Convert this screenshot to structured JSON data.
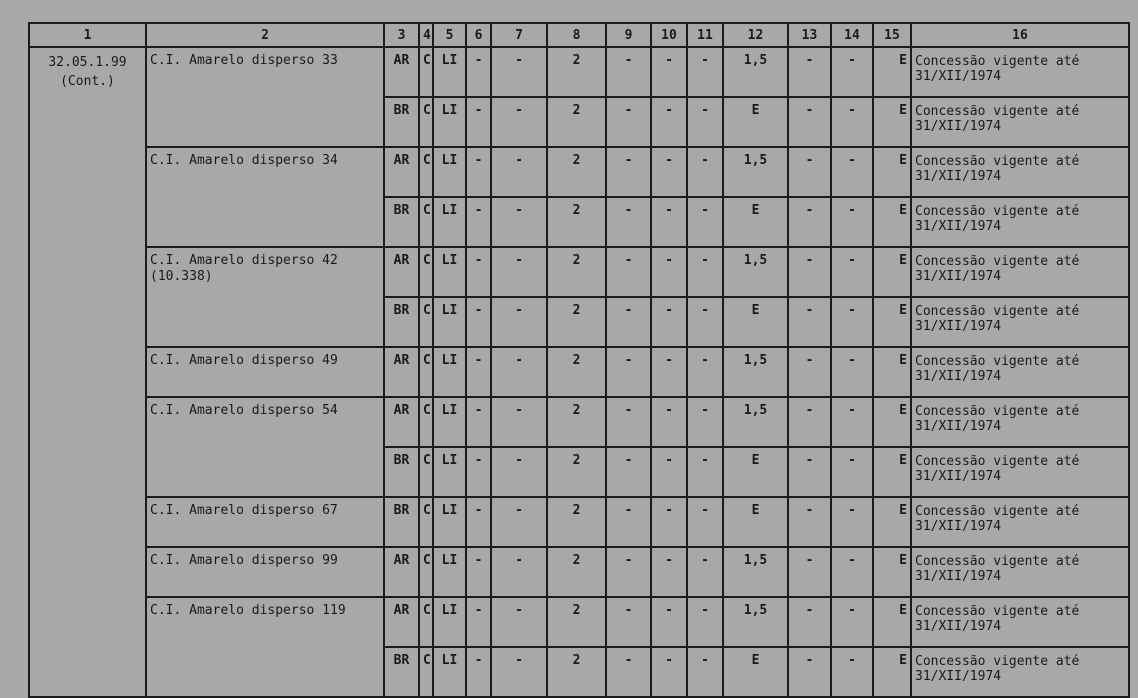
{
  "headers": [
    "1",
    "2",
    "3",
    "4",
    "5",
    "6",
    "7",
    "8",
    "9",
    "10",
    "11",
    "12",
    "13",
    "14",
    "15",
    "16"
  ],
  "code": {
    "line1": "32.05.1.99",
    "line2": "(Cont.)"
  },
  "groups": [
    {
      "name": "C.I. Amarelo disperso 33",
      "rows": [
        [
          "AR",
          "C",
          "LI",
          "-",
          "-",
          "2",
          "-",
          "-",
          "-",
          "1,5",
          "-",
          "-",
          "E",
          "Concessão vigente até 31/XII/1974"
        ],
        [
          "BR",
          "C",
          "LI",
          "-",
          "-",
          "2",
          "-",
          "-",
          "-",
          "E",
          "-",
          "-",
          "E",
          "Concessão vigente até 31/XII/1974"
        ]
      ]
    },
    {
      "name": "C.I. Amarelo disperso 34",
      "rows": [
        [
          "AR",
          "C",
          "LI",
          "-",
          "-",
          "2",
          "-",
          "-",
          "-",
          "1,5",
          "-",
          "-",
          "E",
          "Concessão vigente até 31/XII/1974"
        ],
        [
          "BR",
          "C",
          "LI",
          "-",
          "-",
          "2",
          "-",
          "-",
          "-",
          "E",
          "-",
          "-",
          "E",
          "Concessão vigente até 31/XII/1974"
        ]
      ]
    },
    {
      "name": "C.I. Amarelo disperso 42 (10.338)",
      "rows": [
        [
          "AR",
          "C",
          "LI",
          "-",
          "-",
          "2",
          "-",
          "-",
          "-",
          "1,5",
          "-",
          "-",
          "E",
          "Concessão vigente até 31/XII/1974"
        ],
        [
          "BR",
          "C",
          "LI",
          "-",
          "-",
          "2",
          "-",
          "-",
          "-",
          "E",
          "-",
          "-",
          "E",
          "Concessão vigente até 31/XII/1974"
        ]
      ]
    },
    {
      "name": "C.I. Amarelo disperso 49",
      "rows": [
        [
          "AR",
          "C",
          "LI",
          "-",
          "-",
          "2",
          "-",
          "-",
          "-",
          "1,5",
          "-",
          "-",
          "E",
          "Concessão vigente até 31/XII/1974"
        ]
      ]
    },
    {
      "name": "C.I. Amarelo disperso 54",
      "rows": [
        [
          "AR",
          "C",
          "LI",
          "-",
          "-",
          "2",
          "-",
          "-",
          "-",
          "1,5",
          "-",
          "-",
          "E",
          "Concessão vigente até 31/XII/1974"
        ],
        [
          "BR",
          "C",
          "LI",
          "-",
          "-",
          "2",
          "-",
          "-",
          "-",
          "E",
          "-",
          "-",
          "E",
          "Concessão vigente até 31/XII/1974"
        ]
      ]
    },
    {
      "name": "C.I. Amarelo disperso 67",
      "rows": [
        [
          "BR",
          "C",
          "LI",
          "-",
          "-",
          "2",
          "-",
          "-",
          "-",
          "E",
          "-",
          "-",
          "E",
          "Concessão vigente até 31/XII/1974"
        ]
      ]
    },
    {
      "name": "C.I. Amarelo disperso 99",
      "rows": [
        [
          "AR",
          "C",
          "LI",
          "-",
          "-",
          "2",
          "-",
          "-",
          "-",
          "1,5",
          "-",
          "-",
          "E",
          "Concessão vigente até 31/XII/1974"
        ]
      ]
    },
    {
      "name": "C.I. Amarelo disperso 119",
      "rows": [
        [
          "AR",
          "C",
          "LI",
          "-",
          "-",
          "2",
          "-",
          "-",
          "-",
          "1,5",
          "-",
          "-",
          "E",
          "Concessão vigente até 31/XII/1974"
        ],
        [
          "BR",
          "C",
          "LI",
          "-",
          "-",
          "2",
          "-",
          "-",
          "-",
          "E",
          "-",
          "-",
          "E",
          "Concessão vigente até 31/XII/1974"
        ]
      ]
    }
  ]
}
